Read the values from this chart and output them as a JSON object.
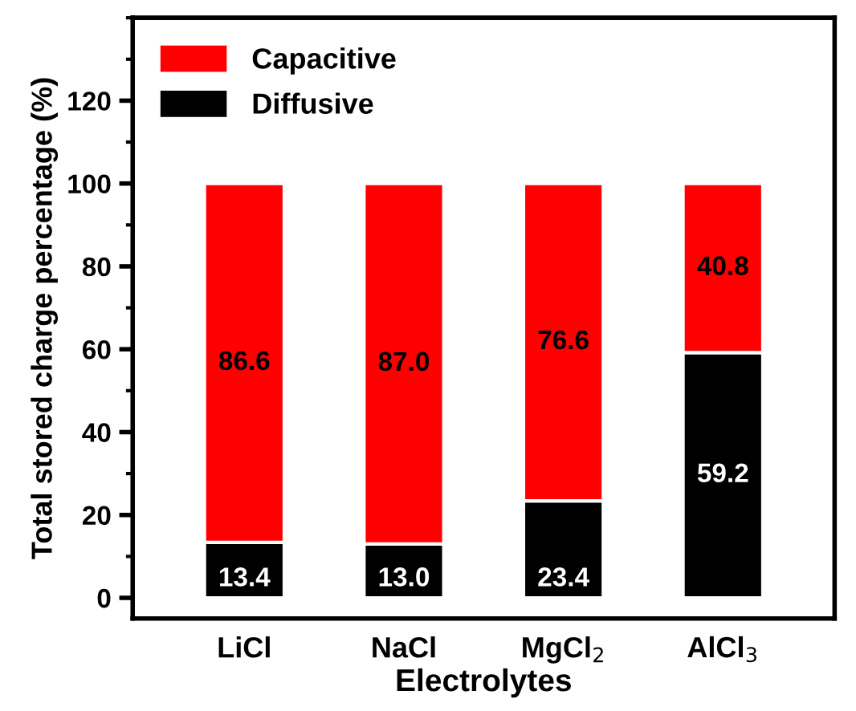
{
  "chart_data": {
    "type": "bar",
    "stacked": true,
    "xlabel": "Electrolytes",
    "ylabel": "Total stored charge percentage (%)",
    "categories": [
      "LiCl",
      "NaCl",
      "MgCl$_{2}$",
      "AlCl$_{3}$"
    ],
    "series": [
      {
        "name": "Diffusive",
        "color": "#000000",
        "values": [
          13.4,
          13.0,
          23.4,
          59.2
        ],
        "value_labels": [
          "13.4",
          "13.0",
          "23.4",
          "59.2"
        ]
      },
      {
        "name": "Capacitive",
        "color": "#ff0000",
        "values": [
          86.6,
          87.0,
          76.6,
          40.8
        ],
        "value_labels": [
          "86.6",
          "87.0",
          "76.6",
          "40.8"
        ]
      }
    ],
    "ylim": [
      -5,
      140
    ],
    "yticks": [
      0,
      20,
      40,
      60,
      80,
      100,
      120
    ],
    "legend": "top left",
    "grid": false
  }
}
